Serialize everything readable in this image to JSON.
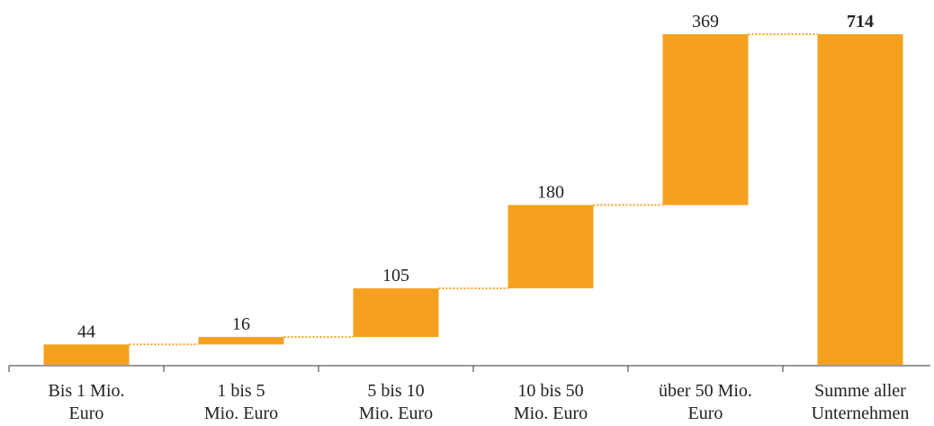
{
  "chart_data": {
    "type": "bar",
    "subtype": "waterfall",
    "categories": [
      [
        "Bis 1 Mio.",
        "Euro"
      ],
      [
        "1 bis 5",
        "Mio. Euro"
      ],
      [
        "5 bis 10",
        "Mio. Euro"
      ],
      [
        "10 bis 50",
        "Mio. Euro"
      ],
      [
        "über 50 Mio.",
        "Euro"
      ],
      [
        "Summe aller",
        "Unternehmen"
      ]
    ],
    "values": [
      44,
      16,
      105,
      180,
      369,
      714
    ],
    "value_labels": [
      "44",
      "16",
      "105",
      "180",
      "369",
      "714"
    ],
    "total_index": 5,
    "ylim": [
      0,
      714
    ],
    "grid": false,
    "bar_color": "#F5A11F",
    "connector_style": "dotted"
  }
}
